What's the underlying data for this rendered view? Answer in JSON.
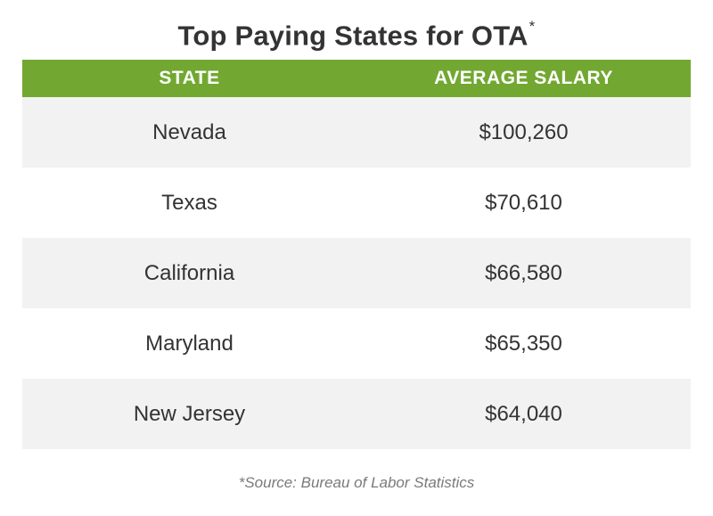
{
  "title": {
    "main": "Top Paying States for OTA",
    "marker": "*"
  },
  "colors": {
    "header_bg": "#72a832",
    "header_text": "#ffffff",
    "row_shaded": "#f2f2f2",
    "row_plain": "#ffffff",
    "body_text": "#333333",
    "source_text": "#7a7a7a"
  },
  "chart_data": {
    "type": "table",
    "title": "Top Paying States for OTA*",
    "columns": [
      "STATE",
      "AVERAGE SALARY"
    ],
    "rows": [
      {
        "state": "Nevada",
        "salary": "$100,260"
      },
      {
        "state": "Texas",
        "salary": "$70,610"
      },
      {
        "state": "California",
        "salary": "$66,580"
      },
      {
        "state": "Maryland",
        "salary": "$65,350"
      },
      {
        "state": "New Jersey",
        "salary": "$64,040"
      }
    ],
    "values": [
      100260,
      70610,
      66580,
      65350,
      64040
    ]
  },
  "source": "*Source: Bureau of Labor Statistics"
}
